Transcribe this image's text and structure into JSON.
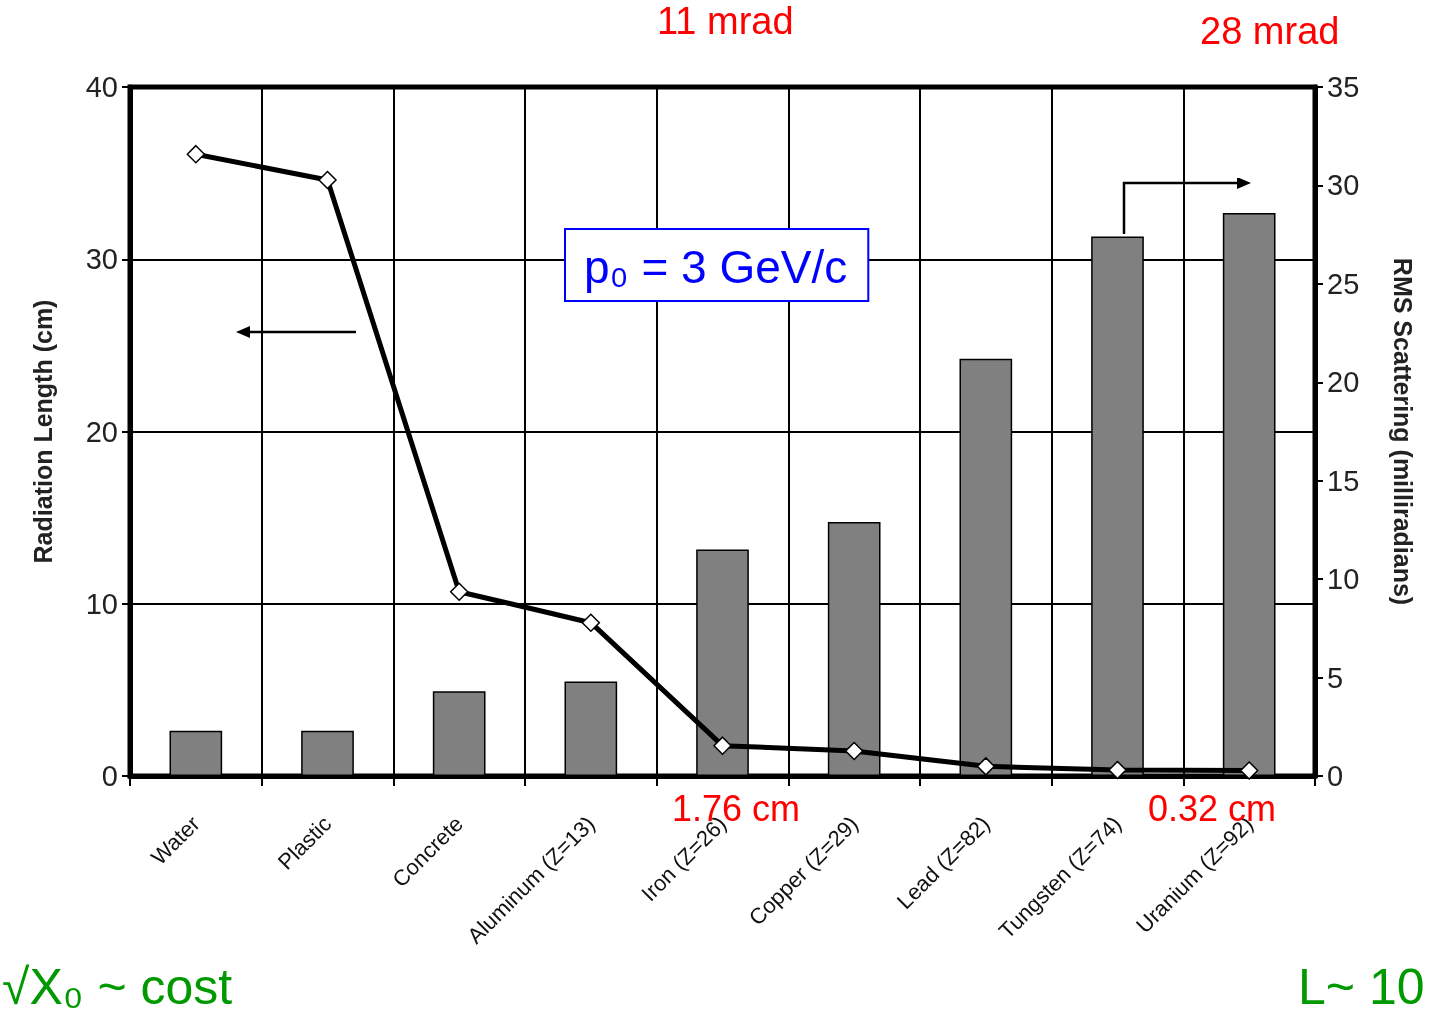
{
  "chart_data": {
    "type": "bar",
    "categories": [
      "Water",
      "Plastic",
      "Concrete",
      "Aluminum (Z=13)",
      "Iron (Z=26)",
      "Copper (Z=29)",
      "Lead (Z=82)",
      "Tungsten (Z=74)",
      "Uranium (Z=92)"
    ],
    "series": [
      {
        "axis": "y2",
        "color": "#808080",
        "values": [
          2.3,
          2.3,
          4.3,
          4.8,
          11.5,
          12.9,
          21.2,
          27.4,
          28.6
        ]
      },
      {
        "type": "line",
        "color": "#000000",
        "marker": "diamond",
        "line_style": "solid",
        "values": [
          36.1,
          34.6,
          10.7,
          8.9,
          1.76,
          1.45,
          0.56,
          0.35,
          0.32
        ]
      }
    ],
    "ylabel": "Radiation Length (cm)",
    "y2label": "RMS Scattering (milliradians)",
    "ylim": [
      0,
      40
    ],
    "yticks": [
      0,
      10,
      20,
      30,
      40
    ],
    "y2lim": [
      0,
      35
    ],
    "y2ticks": [
      0,
      5,
      10,
      15,
      20,
      25,
      30,
      35
    ],
    "grid": true,
    "annotations": [
      "11 mrad",
      "28 mrad",
      "1.76 cm",
      "0.32 cm",
      "p₀ = 3 GeV/c",
      "√X₀ ~ cost",
      "L~ 10"
    ]
  }
}
